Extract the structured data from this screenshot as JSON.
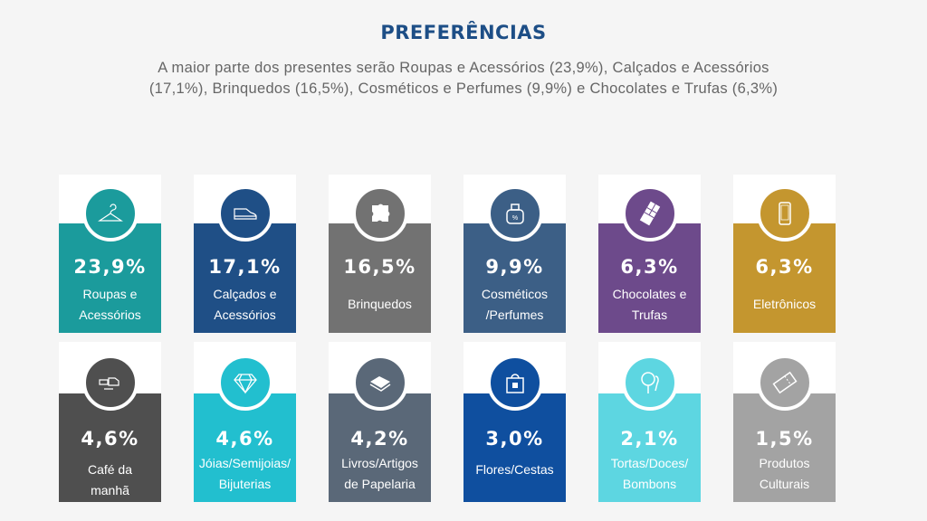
{
  "title": "PREFERÊNCIAS",
  "subtitle": "A maior parte dos presentes serão Roupas e Acessórios (23,9%), Calçados e Acessórios (17,1%), Brinquedos (16,5%), Cosméticos e Perfumes (9,9%) e Chocolates e Trufas (6,3%)",
  "cards": [
    {
      "value": "23,9%",
      "label": "Roupas e Acessórios",
      "icon": "hanger-icon",
      "color": "#1b9b9c"
    },
    {
      "value": "17,1%",
      "label": "Calçados e Acessórios",
      "icon": "sneaker-icon",
      "color": "#1f4f86"
    },
    {
      "value": "16,5%",
      "label": "Brinquedos",
      "icon": "puzzle-icon",
      "color": "#727272"
    },
    {
      "value": "9,9%",
      "label": "Cosméticos /Perfumes",
      "icon": "perfume-icon",
      "color": "#3c5f86"
    },
    {
      "value": "6,3%",
      "label": "Chocolates e Trufas",
      "icon": "chocolate-icon",
      "color": "#6d4a8b"
    },
    {
      "value": "6,3%",
      "label": "Eletrônicos",
      "icon": "smartphone-icon",
      "color": "#c4962f"
    },
    {
      "value": "4,6%",
      "label": "Café da manhã",
      "icon": "breakfast-icon",
      "color": "#4f4f4f"
    },
    {
      "value": "4,6%",
      "label": "Jóias/Semijoias/ Bijuterias",
      "icon": "diamond-icon",
      "color": "#22bfcf"
    },
    {
      "value": "4,2%",
      "label": "Livros/Artigos de Papelaria",
      "icon": "books-icon",
      "color": "#5a6878"
    },
    {
      "value": "3,0%",
      "label": "Flores/Cestas",
      "icon": "gift-bag-icon",
      "color": "#0f4f9f"
    },
    {
      "value": "2,1%",
      "label": "Tortas/Doces/ Bombons",
      "icon": "candy-icon",
      "color": "#5dd6e1"
    },
    {
      "value": "1,5%",
      "label": "Produtos Culturais",
      "icon": "ticket-icon",
      "color": "#a3a3a3"
    }
  ]
}
